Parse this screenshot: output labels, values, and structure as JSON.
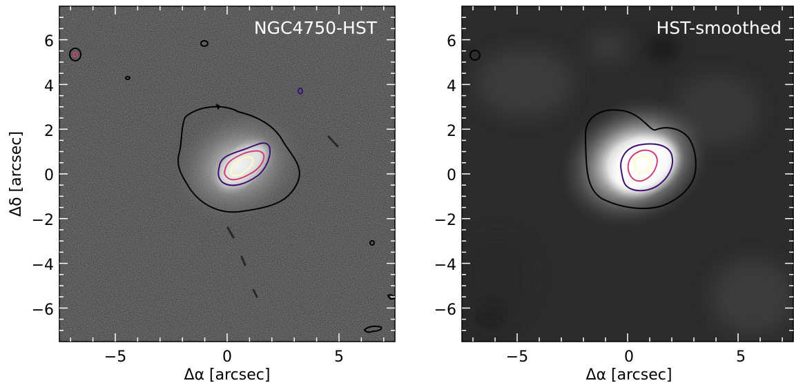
{
  "panels": [
    {
      "title": "NGC4750-HST",
      "xlabel": "Δα [arcsec]",
      "ylabel": "Δδ [arcsec]",
      "x_ticks": [
        "−5",
        "0",
        "5"
      ],
      "y_ticks": [
        "6",
        "4",
        "2",
        "0",
        "−2",
        "−4",
        "−6"
      ],
      "image": "noisy grayscale HST galaxy image with contours",
      "contour_colors": [
        "#000000",
        "#3b0f70",
        "#d0406e",
        "#fcfdbf"
      ]
    },
    {
      "title": "HST-smoothed",
      "xlabel": "Δα [arcsec]",
      "ylabel": "",
      "x_ticks": [
        "−5",
        "0",
        "5"
      ],
      "y_ticks": [
        "6",
        "4",
        "2",
        "0",
        "−2",
        "−4",
        "−6"
      ],
      "image": "smoothed grayscale galaxy image with contours",
      "contour_colors": [
        "#000000",
        "#3b0f70",
        "#d0406e",
        "#fcfdbf"
      ]
    }
  ],
  "chart_data": [
    {
      "type": "heatmap",
      "title": "NGC4750-HST",
      "xlabel": "Δα [arcsec]",
      "ylabel": "Δδ [arcsec]",
      "xlim": [
        -7.5,
        7.5
      ],
      "ylim": [
        -7.5,
        7.5
      ],
      "x_ticks": [
        -5,
        0,
        5
      ],
      "y_ticks": [
        -6,
        -4,
        -2,
        0,
        2,
        4,
        6
      ],
      "colormap": "gray",
      "contour_colors": [
        "#000000",
        "#3b0f70",
        "#d0406e",
        "#fcfdbf"
      ]
    },
    {
      "type": "heatmap",
      "title": "HST-smoothed",
      "xlabel": "Δα [arcsec]",
      "ylabel": "",
      "xlim": [
        -7.5,
        7.5
      ],
      "ylim": [
        -7.5,
        7.5
      ],
      "x_ticks": [
        -5,
        0,
        5
      ],
      "y_ticks": [
        -6,
        -4,
        -2,
        0,
        2,
        4,
        6
      ],
      "colormap": "gray",
      "contour_colors": [
        "#000000",
        "#3b0f70",
        "#d0406e",
        "#fcfdbf"
      ]
    }
  ]
}
